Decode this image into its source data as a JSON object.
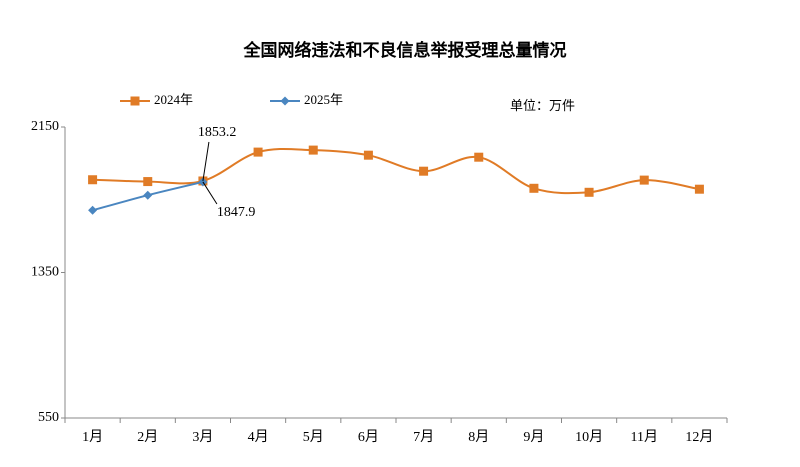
{
  "chart_data": {
    "type": "line",
    "title": "全国网络违法和不良信息举报受理总量情况",
    "unit_label": "单位：万件",
    "categories": [
      "1月",
      "2月",
      "3月",
      "4月",
      "5月",
      "6月",
      "7月",
      "8月",
      "9月",
      "10月",
      "11月",
      "12月"
    ],
    "series": [
      {
        "name": "2024年",
        "color": "#e07b26",
        "marker": "square",
        "values": [
          1860,
          1850,
          1853.2,
          2012,
          2023,
          1995,
          1907,
          1984,
          1813,
          1791,
          1858,
          1808
        ]
      },
      {
        "name": "2025年",
        "color": "#4a86c0",
        "marker": "diamond",
        "values": [
          1692,
          1775,
          1847.9,
          null,
          null,
          null,
          null,
          null,
          null,
          null,
          null,
          null
        ]
      }
    ],
    "ylim": [
      550,
      2150
    ],
    "yticks": [
      550,
      1350,
      2150
    ],
    "grid": false
  }
}
